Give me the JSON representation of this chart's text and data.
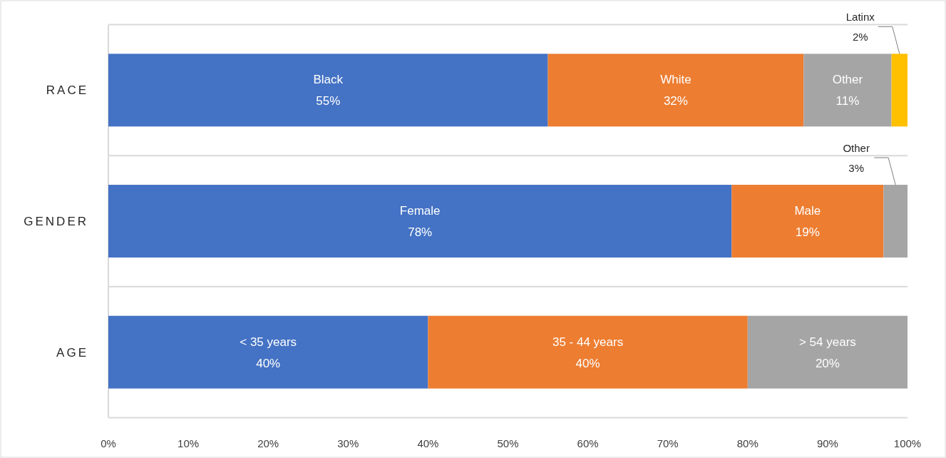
{
  "chart_data": {
    "type": "bar",
    "orientation": "horizontal",
    "stacked": true,
    "categories": [
      "RACE",
      "GENDER",
      "AGE"
    ],
    "series": [
      {
        "color": "#4472c4",
        "values": [
          55,
          78,
          40
        ],
        "value_labels": [
          "Black\n55%",
          "Female\n78%",
          "< 35 years\n40%"
        ]
      },
      {
        "color": "#ed7d31",
        "values": [
          32,
          19,
          40
        ],
        "value_labels": [
          "White\n32%",
          "Male\n19%",
          "35 - 44 years\n40%"
        ]
      },
      {
        "color": "#a5a5a5",
        "values": [
          11,
          3,
          20
        ],
        "value_labels": [
          "Other\n11%",
          "Other\n3%",
          "> 54 years\n20%"
        ]
      },
      {
        "color": "#ffc000",
        "values": [
          2,
          null,
          null
        ],
        "value_labels": [
          "Latinx\n2%",
          null,
          null
        ]
      }
    ],
    "xlim": [
      0,
      100
    ],
    "xticks": [
      {
        "value": 0,
        "label": "0%"
      },
      {
        "value": 10,
        "label": "10%"
      },
      {
        "value": 20,
        "label": "20%"
      },
      {
        "value": 30,
        "label": "30%"
      },
      {
        "value": 40,
        "label": "40%"
      },
      {
        "value": 50,
        "label": "50%"
      },
      {
        "value": 60,
        "label": "60%"
      },
      {
        "value": 70,
        "label": "70%"
      },
      {
        "value": 80,
        "label": "80%"
      },
      {
        "value": 90,
        "label": "90%"
      },
      {
        "value": 100,
        "label": "100%"
      }
    ],
    "grid": false
  }
}
